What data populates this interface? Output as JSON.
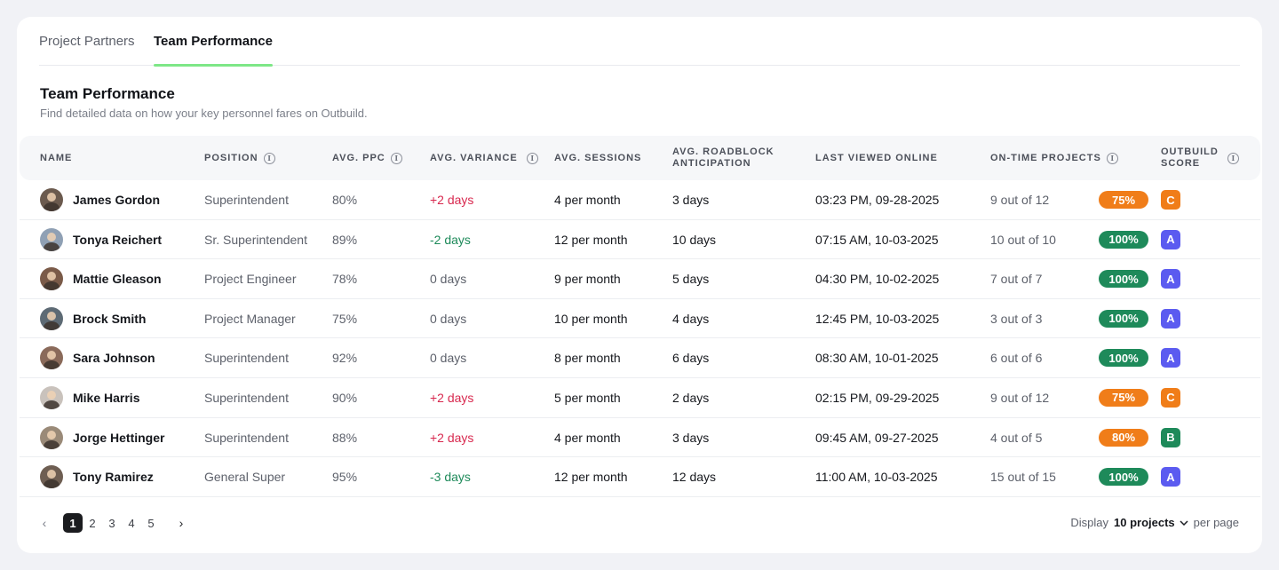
{
  "tabs": [
    "Project Partners",
    "Team Performance"
  ],
  "active_tab": "Team Performance",
  "section": {
    "title": "Team Performance",
    "subtitle": "Find detailed data on how your key personnel fares on Outbuild."
  },
  "columns": {
    "name": "NAME",
    "position": "POSITION",
    "ppc": "AVG. PPC",
    "variance": "AVG. VARIANCE",
    "sessions": "AVG. SESSIONS",
    "roadblock_1": "AVG. ROADBLOCK",
    "roadblock_2": "ANTICIPATION",
    "last_viewed": "LAST VIEWED ONLINE",
    "ontime": "ON-TIME PROJECTS",
    "score_1": "OUTBUILD",
    "score_2": "SCORE",
    "info_glyph": "i"
  },
  "rows": [
    {
      "name": "James Gordon",
      "position": "Superintendent",
      "ppc": "80%",
      "variance": "+2 days",
      "variance_tone": "negative",
      "sessions": "4 per month",
      "roadblock": "3 days",
      "last": "03:23 PM, 09-28-2025",
      "ontime": "9 out of 12",
      "pct": "75%",
      "pct_color": "#f07d19",
      "score": "C",
      "score_color": "#f07d19",
      "avatar_color": "#6b5a4e"
    },
    {
      "name": "Tonya Reichert",
      "position": "Sr. Superintendent",
      "ppc": "89%",
      "variance": "-2 days",
      "variance_tone": "positive",
      "sessions": "12 per month",
      "roadblock": "10 days",
      "last": "07:15 AM, 10-03-2025",
      "ontime": "10 out of 10",
      "pct": "100%",
      "pct_color": "#1e8a5a",
      "score": "A",
      "score_color": "#5b5bf0",
      "avatar_color": "#8fa0b4"
    },
    {
      "name": "Mattie Gleason",
      "position": "Project Engineer",
      "ppc": "78%",
      "variance": "0 days",
      "variance_tone": "neutral",
      "sessions": "9 per month",
      "roadblock": "5 days",
      "last": "04:30 PM, 10-02-2025",
      "ontime": "7 out of 7",
      "pct": "100%",
      "pct_color": "#1e8a5a",
      "score": "A",
      "score_color": "#5b5bf0",
      "avatar_color": "#7a5a48"
    },
    {
      "name": "Brock Smith",
      "position": "Project Manager",
      "ppc": "75%",
      "variance": "0 days",
      "variance_tone": "neutral",
      "sessions": "10 per month",
      "roadblock": "4 days",
      "last": "12:45 PM, 10-03-2025",
      "ontime": "3 out of 3",
      "pct": "100%",
      "pct_color": "#1e8a5a",
      "score": "A",
      "score_color": "#5b5bf0",
      "avatar_color": "#5d6a74"
    },
    {
      "name": "Sara Johnson",
      "position": "Superintendent",
      "ppc": "92%",
      "variance": "0 days",
      "variance_tone": "neutral",
      "sessions": "8 per month",
      "roadblock": "6 days",
      "last": "08:30 AM, 10-01-2025",
      "ontime": "6 out of 6",
      "pct": "100%",
      "pct_color": "#1e8a5a",
      "score": "A",
      "score_color": "#5b5bf0",
      "avatar_color": "#8a6a5a"
    },
    {
      "name": "Mike Harris",
      "position": "Superintendent",
      "ppc": "90%",
      "variance": "+2 days",
      "variance_tone": "negative",
      "sessions": "5 per month",
      "roadblock": "2 days",
      "last": "02:15 PM, 09-29-2025",
      "ontime": "9 out of 12",
      "pct": "75%",
      "pct_color": "#f07d19",
      "score": "C",
      "score_color": "#f07d19",
      "avatar_color": "#c9c2bc"
    },
    {
      "name": "Jorge Hettinger",
      "position": "Superintendent",
      "ppc": "88%",
      "variance": "+2 days",
      "variance_tone": "negative",
      "sessions": "4 per month",
      "roadblock": "3 days",
      "last": "09:45 AM, 09-27-2025",
      "ontime": "4 out of 5",
      "pct": "80%",
      "pct_color": "#f07d19",
      "score": "B",
      "score_color": "#1e8a5a",
      "avatar_color": "#9a8a78"
    },
    {
      "name": "Tony Ramirez",
      "position": "General Super",
      "ppc": "95%",
      "variance": "-3 days",
      "variance_tone": "positive",
      "sessions": "12 per month",
      "roadblock": "12 days",
      "last": "11:00 AM, 10-03-2025",
      "ontime": "15 out of 15",
      "pct": "100%",
      "pct_color": "#1e8a5a",
      "score": "A",
      "score_color": "#5b5bf0",
      "avatar_color": "#6e5e52"
    }
  ],
  "variance_colors": {
    "negative": "#d8294f",
    "positive": "#1e8a5a",
    "neutral": "#5d616b"
  },
  "pagination": {
    "prev": "‹",
    "next": "›",
    "pages": [
      "1",
      "2",
      "3",
      "4",
      "5"
    ],
    "current": "1"
  },
  "display": {
    "label": "Display",
    "value": "10 projects",
    "suffix": "per page"
  }
}
